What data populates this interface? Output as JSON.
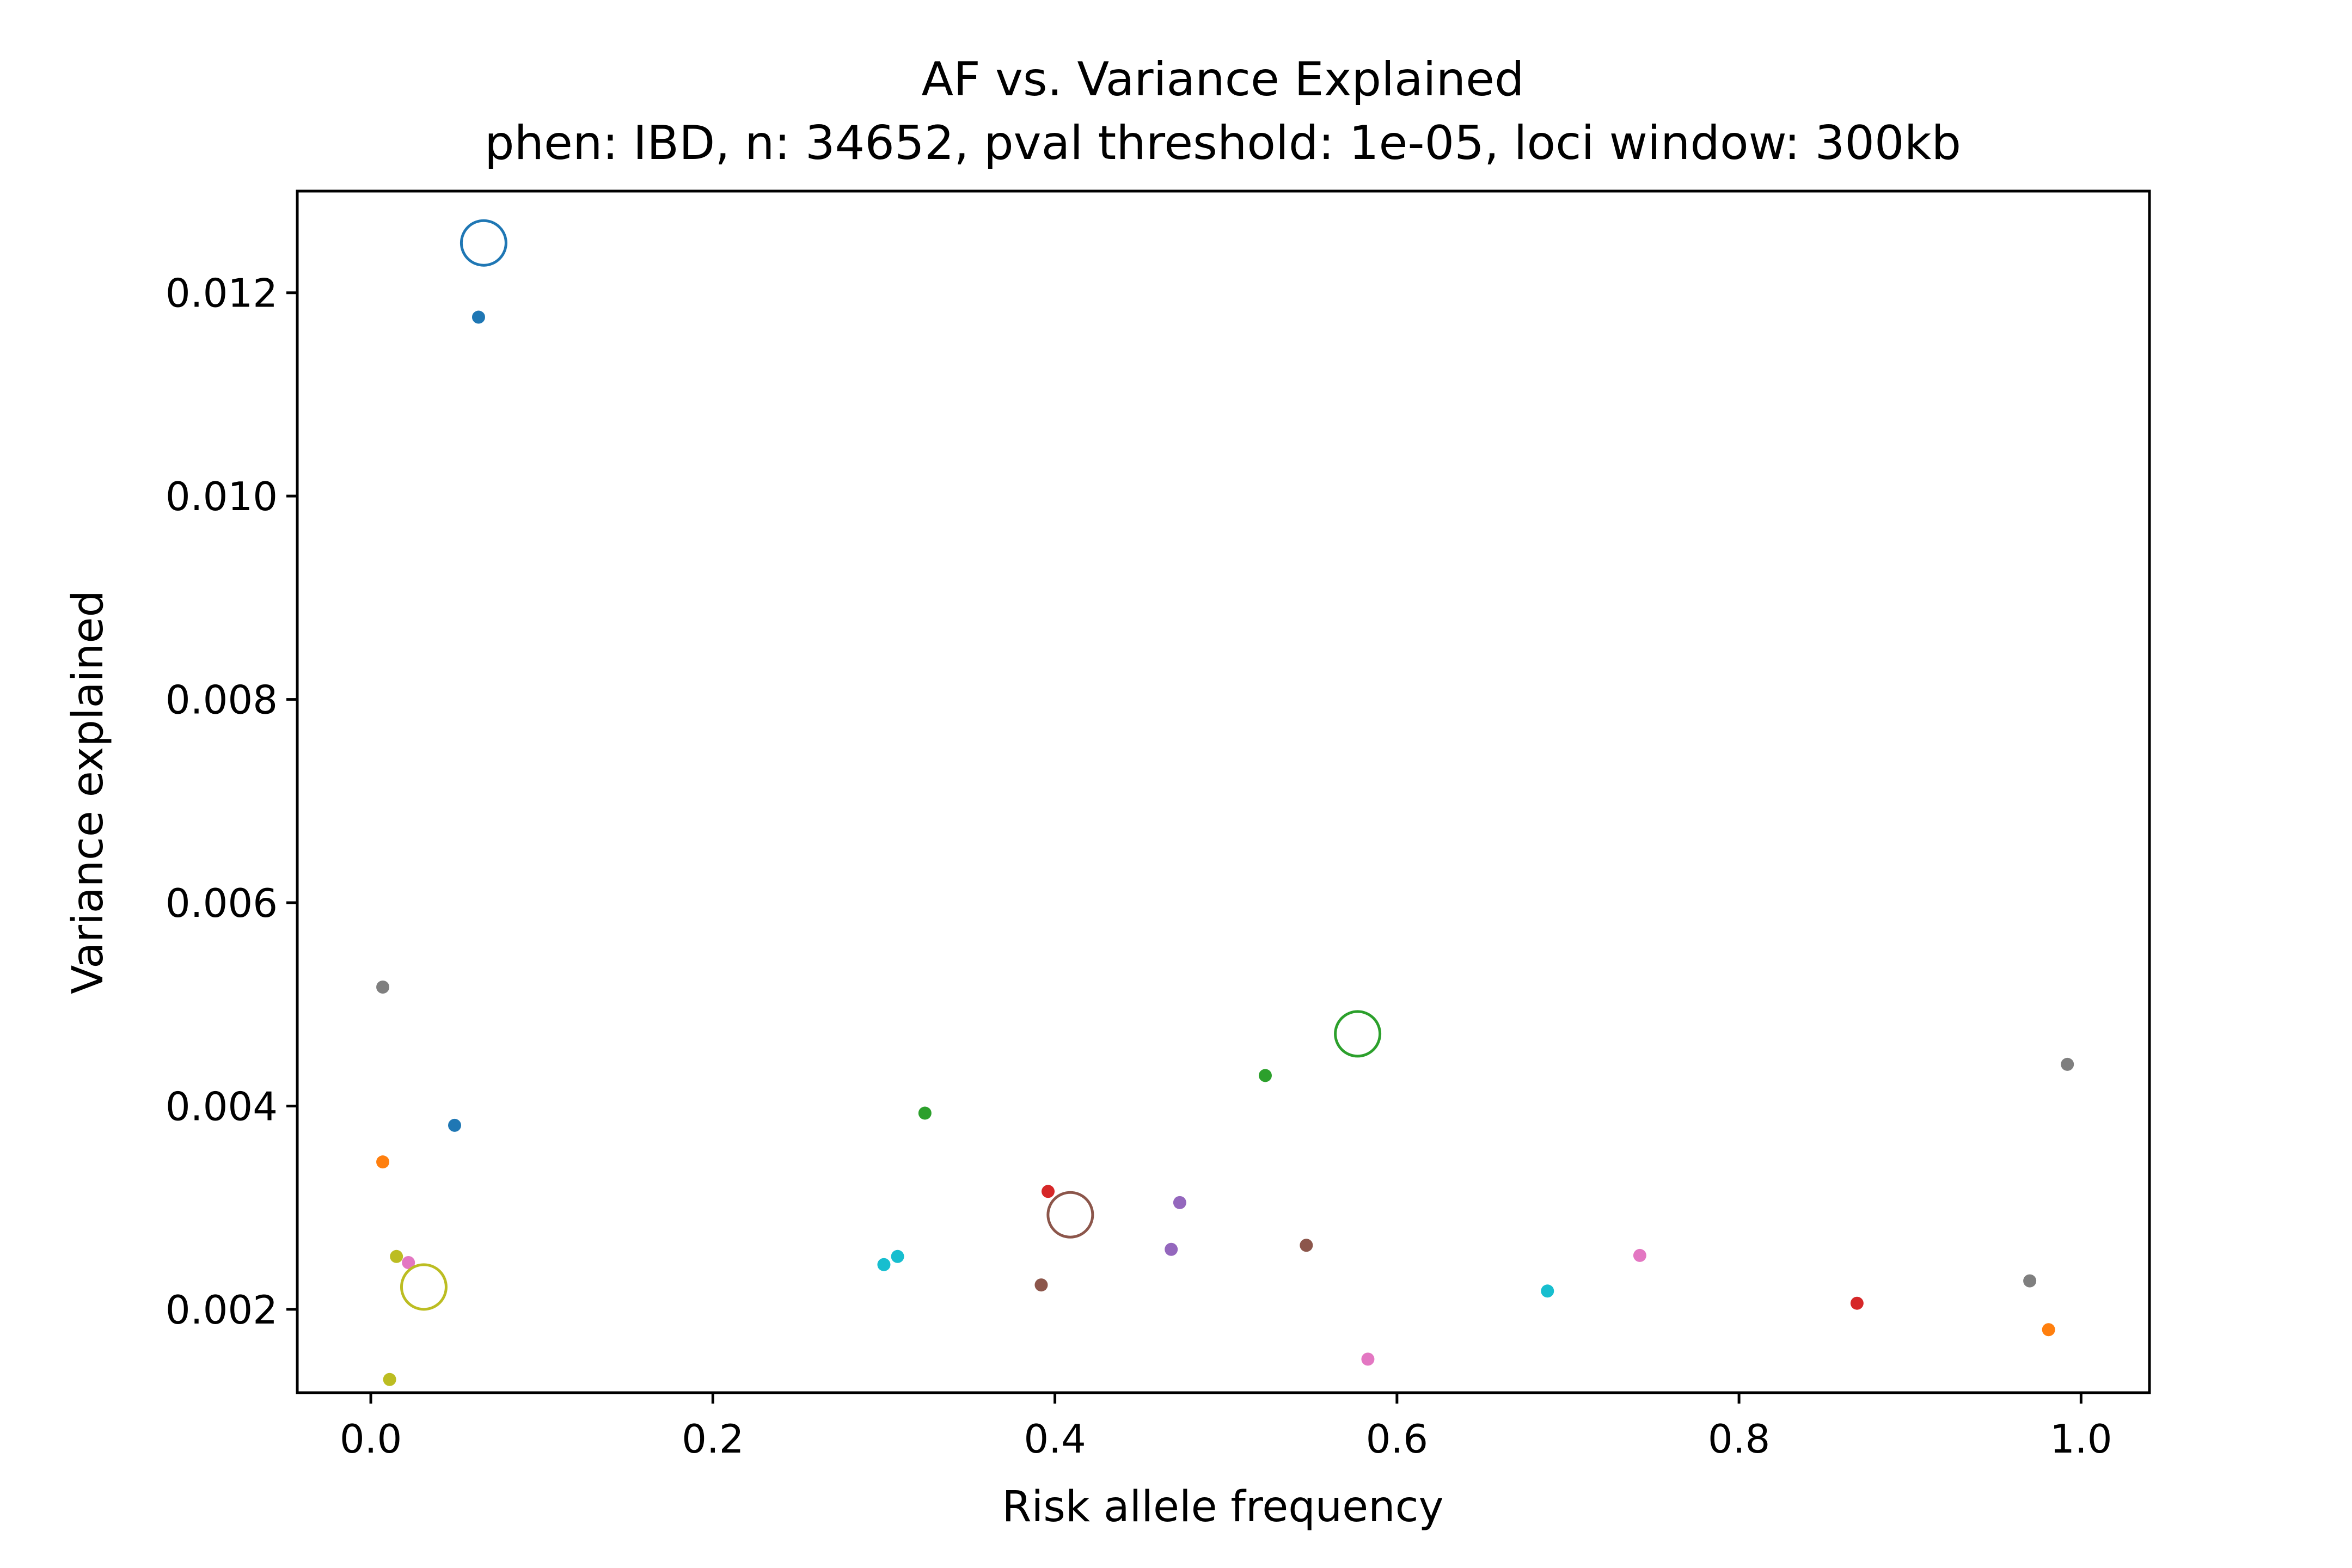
{
  "chart_data": {
    "type": "scatter",
    "title": "AF vs. Variance Explained",
    "subtitle": "phen: IBD, n: 34652, pval threshold: 1e-05, loci window: 300kb",
    "xlabel": "Risk allele frequency",
    "ylabel": "Variance explained",
    "xlim": [
      -0.043,
      1.04
    ],
    "ylim": [
      0.00118,
      0.013
    ],
    "xticks": [
      0.0,
      0.2,
      0.4,
      0.6,
      0.8,
      1.0
    ],
    "xtick_labels": [
      "0.0",
      "0.2",
      "0.4",
      "0.6",
      "0.8",
      "1.0"
    ],
    "yticks": [
      0.002,
      0.004,
      0.006,
      0.008,
      0.01,
      0.012
    ],
    "ytick_labels": [
      "0.002",
      "0.004",
      "0.006",
      "0.008",
      "0.010",
      "0.012"
    ],
    "grid": false,
    "legend": "none",
    "points": [
      {
        "x": 0.063,
        "y": 0.01176,
        "color": "#1f77b4",
        "marker": "dot"
      },
      {
        "x": 0.049,
        "y": 0.00381,
        "color": "#1f77b4",
        "marker": "dot"
      },
      {
        "x": 0.007,
        "y": 0.00517,
        "color": "#7f7f7f",
        "marker": "dot"
      },
      {
        "x": 0.007,
        "y": 0.00345,
        "color": "#ff7f0e",
        "marker": "dot"
      },
      {
        "x": 0.015,
        "y": 0.00252,
        "color": "#bcbd22",
        "marker": "dot"
      },
      {
        "x": 0.022,
        "y": 0.00246,
        "color": "#e377c2",
        "marker": "dot"
      },
      {
        "x": 0.011,
        "y": 0.00131,
        "color": "#bcbd22",
        "marker": "dot"
      },
      {
        "x": 0.3,
        "y": 0.00244,
        "color": "#17becf",
        "marker": "dot"
      },
      {
        "x": 0.308,
        "y": 0.00252,
        "color": "#17becf",
        "marker": "dot"
      },
      {
        "x": 0.324,
        "y": 0.00393,
        "color": "#2ca02c",
        "marker": "dot"
      },
      {
        "x": 0.392,
        "y": 0.00224,
        "color": "#8c564b",
        "marker": "dot"
      },
      {
        "x": 0.396,
        "y": 0.00316,
        "color": "#d62728",
        "marker": "dot"
      },
      {
        "x": 0.468,
        "y": 0.00259,
        "color": "#9467bd",
        "marker": "dot"
      },
      {
        "x": 0.473,
        "y": 0.00305,
        "color": "#9467bd",
        "marker": "dot"
      },
      {
        "x": 0.523,
        "y": 0.0043,
        "color": "#2ca02c",
        "marker": "dot"
      },
      {
        "x": 0.547,
        "y": 0.00263,
        "color": "#8c564b",
        "marker": "dot"
      },
      {
        "x": 0.583,
        "y": 0.00151,
        "color": "#e377c2",
        "marker": "dot"
      },
      {
        "x": 0.688,
        "y": 0.00218,
        "color": "#17becf",
        "marker": "dot"
      },
      {
        "x": 0.742,
        "y": 0.00253,
        "color": "#e377c2",
        "marker": "dot"
      },
      {
        "x": 0.869,
        "y": 0.00206,
        "color": "#d62728",
        "marker": "dot"
      },
      {
        "x": 0.97,
        "y": 0.00228,
        "color": "#7f7f7f",
        "marker": "dot"
      },
      {
        "x": 0.981,
        "y": 0.0018,
        "color": "#ff7f0e",
        "marker": "dot"
      },
      {
        "x": 0.992,
        "y": 0.00441,
        "color": "#7f7f7f",
        "marker": "dot"
      },
      {
        "x": 0.066,
        "y": 0.01249,
        "color": "#1f77b4",
        "marker": "open-circle"
      },
      {
        "x": 0.031,
        "y": 0.00222,
        "color": "#bcbd22",
        "marker": "open-circle"
      },
      {
        "x": 0.409,
        "y": 0.00293,
        "color": "#8c564b",
        "marker": "open-circle"
      },
      {
        "x": 0.577,
        "y": 0.00471,
        "color": "#2ca02c",
        "marker": "open-circle"
      }
    ]
  }
}
